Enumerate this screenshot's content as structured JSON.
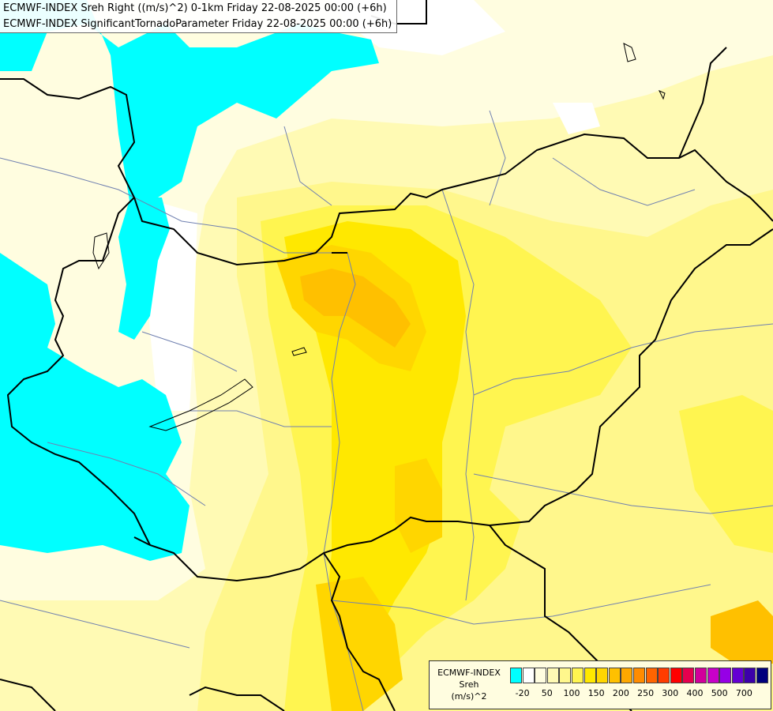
{
  "header": {
    "line1": "ECMWF-INDEX Sreh Right ((m/s)^2) 0-1km Friday 22-08-2025 00:00 (+6h)",
    "line2": "ECMWF-INDEX SignificantTornadoParameter Friday 22-08-2025 00:00 (+6h)"
  },
  "legend": {
    "source": "ECMWF-INDEX",
    "variable": "Sreh",
    "unit": "(m/s)^2",
    "colors": [
      "#00ffff",
      "#ffffff",
      "#fffde0",
      "#fffab4",
      "#fff78c",
      "#fff550",
      "#ffe800",
      "#ffd600",
      "#ffc000",
      "#ffa800",
      "#ff8c00",
      "#ff6400",
      "#ff3c00",
      "#ff0000",
      "#e6004e",
      "#d2009b",
      "#c800c8",
      "#9600e6",
      "#6400d2",
      "#3c00aa",
      "#00007d"
    ],
    "ticks": [
      "-20",
      "50",
      "100",
      "150",
      "200",
      "250",
      "300",
      "400",
      "500",
      "700"
    ]
  },
  "map": {
    "field_colors": {
      "cyan": "#00ffff",
      "white": "#ffffff",
      "pale": "#fffde0",
      "light": "#fffab4",
      "yellow1": "#fff78c",
      "yellow2": "#fff550",
      "yellow3": "#ffe800",
      "orange1": "#ffd600",
      "orange2": "#ffc000"
    },
    "border_color": "#000000",
    "river_color": "#7080b0"
  }
}
